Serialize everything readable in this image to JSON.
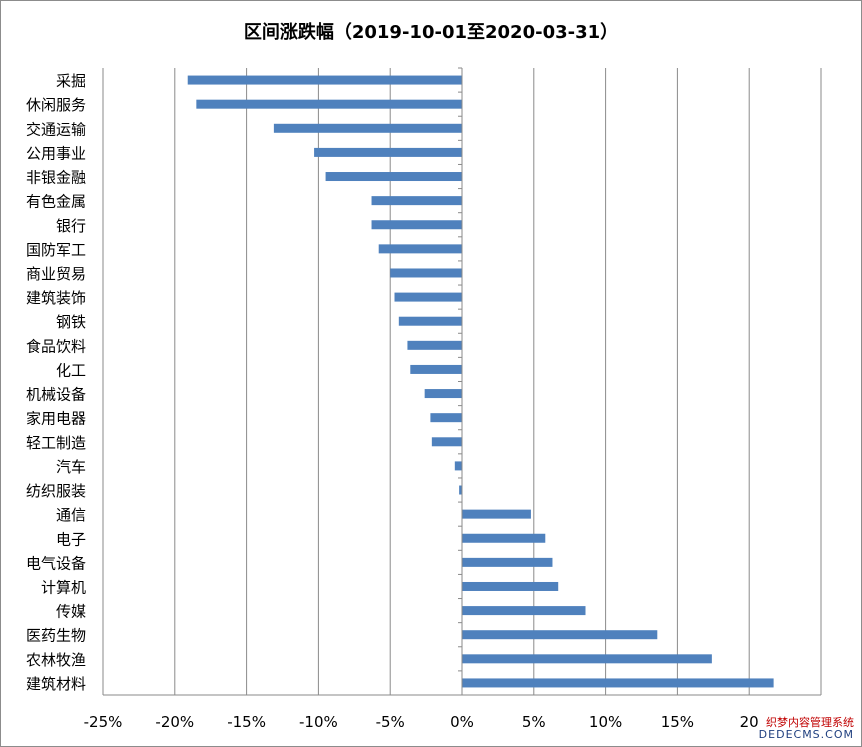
{
  "chart_data": {
    "type": "bar",
    "orientation": "horizontal",
    "title": "区间涨跌幅（2019-10-01至2020-03-31）",
    "xlabel": "",
    "ylabel": "",
    "xlim": [
      -25,
      25
    ],
    "x_tick_values": [
      -25,
      -20,
      -15,
      -10,
      -5,
      0,
      5,
      10,
      15,
      20
    ],
    "x_tick_labels": [
      "-25%",
      "-20%",
      "-15%",
      "-10%",
      "-5%",
      "0%",
      "5%",
      "10%",
      "15%",
      "20"
    ],
    "grid": "vertical",
    "legend": "none",
    "bar_color": "#4f81bd",
    "categories": [
      "采掘",
      "休闲服务",
      "交通运输",
      "公用事业",
      "非银金融",
      "有色金属",
      "银行",
      "国防军工",
      "商业贸易",
      "建筑装饰",
      "钢铁",
      "食品饮料",
      "化工",
      "机械设备",
      "家用电器",
      "轻工制造",
      "汽车",
      "纺织服装",
      "通信",
      "电子",
      "电气设备",
      "计算机",
      "传媒",
      "医药生物",
      "农林牧渔",
      "建筑材料"
    ],
    "values": [
      -19.1,
      -18.5,
      -13.1,
      -10.3,
      -9.5,
      -6.3,
      -6.3,
      -5.8,
      -5.0,
      -4.7,
      -4.4,
      -3.8,
      -3.6,
      -2.6,
      -2.2,
      -2.1,
      -0.5,
      -0.2,
      4.8,
      5.8,
      6.3,
      6.7,
      8.6,
      13.6,
      17.4,
      21.7
    ]
  },
  "watermark": {
    "line1": "织梦内容管理系统",
    "line2": "DEDECMS.COM"
  }
}
